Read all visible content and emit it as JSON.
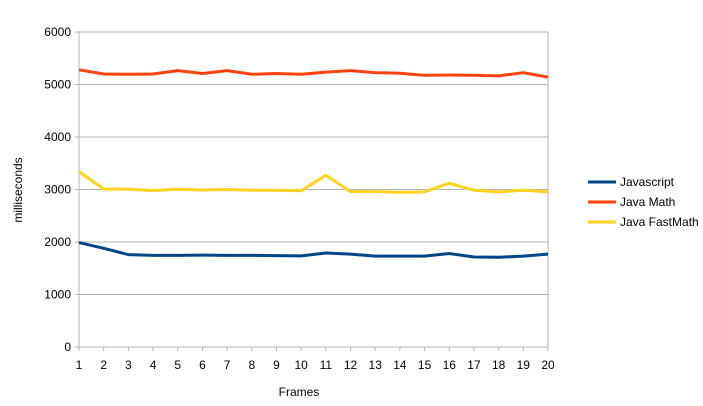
{
  "chart_data": {
    "type": "line",
    "title": "",
    "xlabel": "Frames",
    "ylabel": "milliseconds",
    "x": [
      1,
      2,
      3,
      4,
      5,
      6,
      7,
      8,
      9,
      10,
      11,
      12,
      13,
      14,
      15,
      16,
      17,
      18,
      19,
      20
    ],
    "ylim": [
      0,
      6000
    ],
    "yticks": [
      0,
      1000,
      2000,
      3000,
      4000,
      5000,
      6000
    ],
    "grid": "horizontal",
    "legend": "right",
    "series": [
      {
        "name": "Javascript",
        "color": "#004586",
        "values": [
          1990,
          1880,
          1760,
          1745,
          1745,
          1750,
          1745,
          1745,
          1740,
          1735,
          1790,
          1770,
          1730,
          1730,
          1730,
          1780,
          1715,
          1710,
          1730,
          1770
        ]
      },
      {
        "name": "Java Math",
        "color": "#ff420e",
        "values": [
          5280,
          5200,
          5195,
          5200,
          5265,
          5210,
          5265,
          5195,
          5210,
          5195,
          5235,
          5265,
          5225,
          5215,
          5175,
          5180,
          5175,
          5165,
          5225,
          5140
        ]
      },
      {
        "name": "Java FastMath",
        "color": "#ffd320",
        "values": [
          3340,
          3010,
          3005,
          2980,
          3005,
          2990,
          3000,
          2985,
          2985,
          2975,
          3270,
          2960,
          2960,
          2945,
          2955,
          3120,
          2985,
          2955,
          2985,
          2955
        ]
      }
    ]
  }
}
